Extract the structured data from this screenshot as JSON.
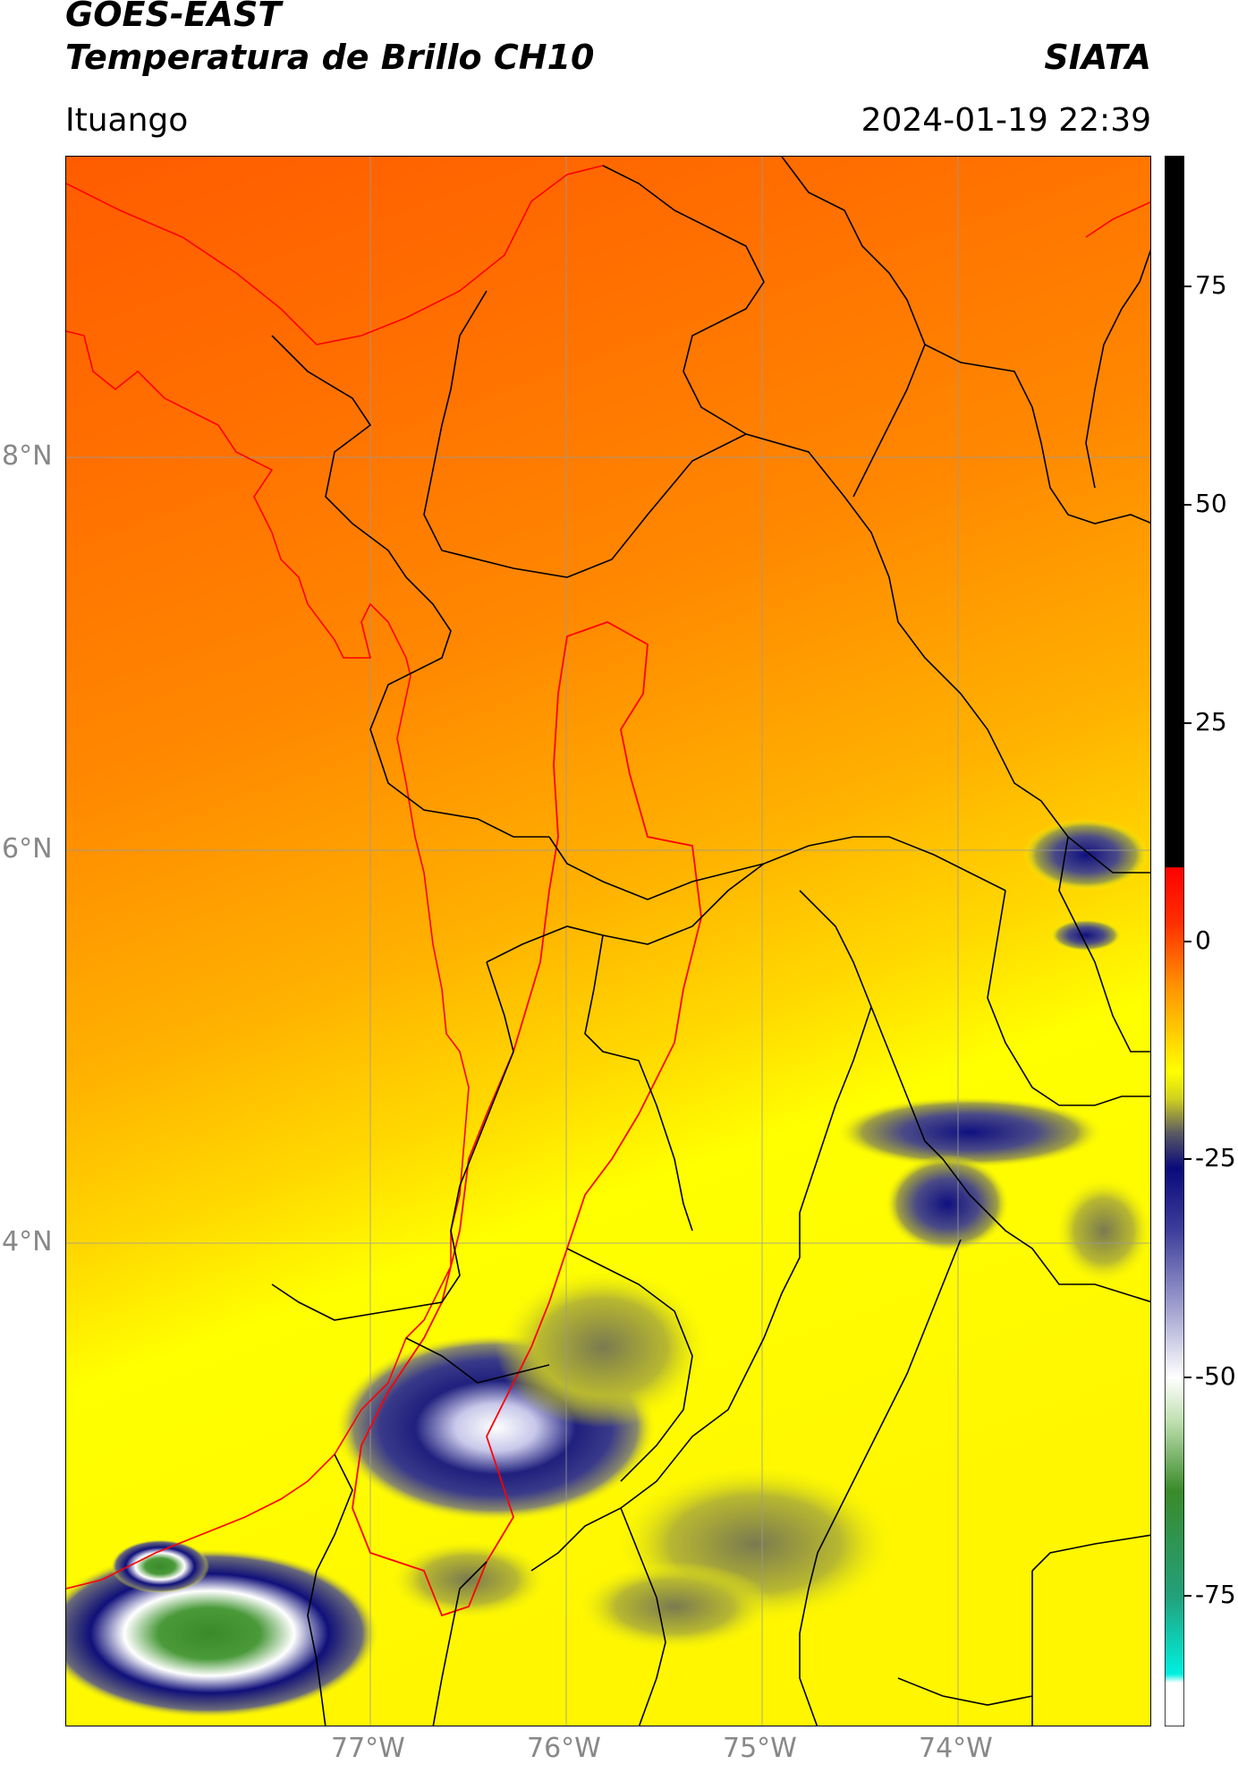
{
  "header": {
    "title_line1": "GOES-EAST",
    "title_line2": "Temperatura de Brillo CH10",
    "agency": "SIATA",
    "location": "Ituango",
    "datetime": "2024-01-19 22:39"
  },
  "map": {
    "lon_labels": [
      "77°W",
      "76°W",
      "75°W",
      "74°W"
    ],
    "lat_labels": [
      "8°N",
      "6°N",
      "4°N"
    ],
    "gridline_color": "#9a9a9a",
    "boundary_color": "#000000",
    "basin_outline_color": "#ff0000"
  },
  "colorbar": {
    "tick_labels": [
      "75",
      "50",
      "25",
      "0",
      "-25",
      "-50",
      "-75"
    ],
    "tick_values": [
      75,
      50,
      25,
      0,
      -25,
      -50,
      -75
    ],
    "range": [
      -90,
      90
    ],
    "stops": [
      {
        "value": 90,
        "color": "#000000"
      },
      {
        "value": 8.5,
        "color": "#000000"
      },
      {
        "value": 8.4,
        "color": "#ff0000"
      },
      {
        "value": 2,
        "color": "#ff3000"
      },
      {
        "value": -5,
        "color": "#ff9000"
      },
      {
        "value": -11,
        "color": "#ffd200"
      },
      {
        "value": -15,
        "color": "#ffff00"
      },
      {
        "value": -18,
        "color": "#d2d21e"
      },
      {
        "value": -22,
        "color": "#5a5a64"
      },
      {
        "value": -26,
        "color": "#0a0a7a"
      },
      {
        "value": -33,
        "color": "#3c3c9a"
      },
      {
        "value": -42,
        "color": "#a0a0d0"
      },
      {
        "value": -50,
        "color": "#ffffff"
      },
      {
        "value": -55,
        "color": "#bfe0b0"
      },
      {
        "value": -63,
        "color": "#3a8a2a"
      },
      {
        "value": -75,
        "color": "#22a07a"
      },
      {
        "value": -84,
        "color": "#00f0e0"
      },
      {
        "value": -85,
        "color": "#ffffff"
      },
      {
        "value": -90,
        "color": "#ffffff"
      }
    ]
  }
}
